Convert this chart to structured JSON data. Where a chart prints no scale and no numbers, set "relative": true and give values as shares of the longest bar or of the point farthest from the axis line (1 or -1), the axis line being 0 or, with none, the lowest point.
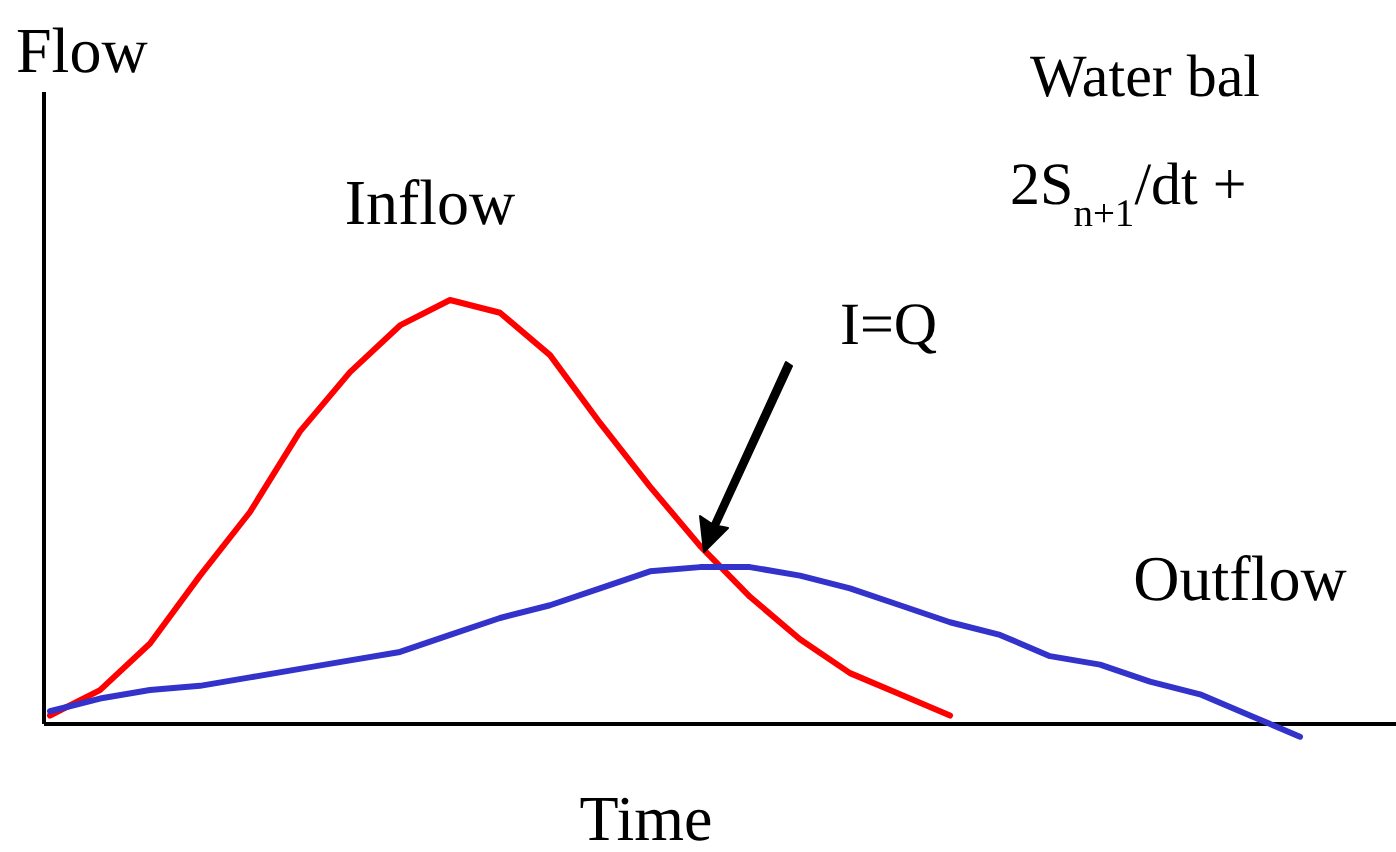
{
  "chart_data": {
    "type": "line",
    "relative": true,
    "ylabel": "Flow",
    "xlabel": "Time",
    "categories": [
      null,
      null,
      null,
      null,
      null,
      null,
      null,
      null,
      null,
      null,
      null,
      null,
      null,
      null,
      null,
      null,
      null,
      null,
      null,
      null,
      null,
      null,
      null,
      null,
      null,
      null,
      null
    ],
    "series": [
      {
        "name": "Inflow",
        "color": "#ff0000",
        "values": [
          0.02,
          0.08,
          0.19,
          0.35,
          0.5,
          0.69,
          0.83,
          0.94,
          1,
          0.97,
          0.87,
          0.71,
          0.56,
          0.42,
          0.3,
          0.2,
          0.12,
          0.07,
          0.02,
          null,
          null,
          null,
          null,
          null,
          null,
          null,
          null
        ]
      },
      {
        "name": "Outflow",
        "color": "#3333cc",
        "values": [
          0.03,
          0.06,
          0.08,
          0.09,
          0.11,
          0.13,
          0.15,
          0.17,
          0.21,
          0.25,
          0.28,
          0.32,
          0.36,
          0.37,
          0.37,
          0.35,
          0.32,
          0.28,
          0.24,
          0.21,
          0.16,
          0.14,
          0.1,
          0.07,
          0.02,
          -0.03,
          null
        ]
      }
    ],
    "annotations": [
      "I=Q",
      "Water bal",
      "2S$_{n+1}$/dt +"
    ],
    "line_style": "solid"
  }
}
